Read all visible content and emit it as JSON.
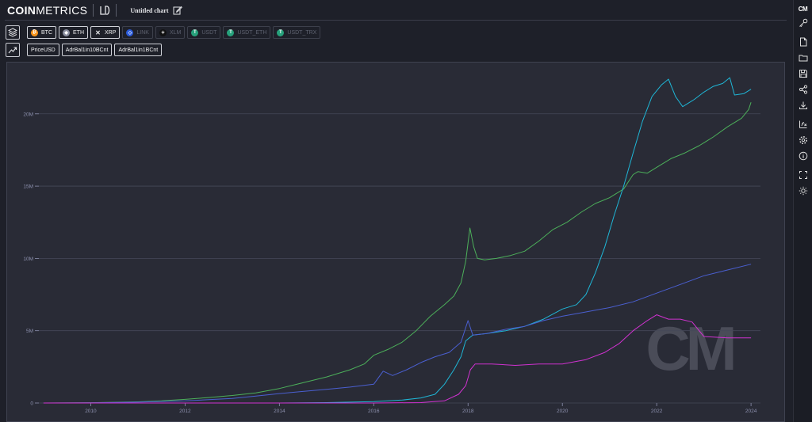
{
  "app": {
    "logo_bold": "COIN",
    "logo_rest": "METRICS",
    "chart_title": "Untitled chart"
  },
  "assets": [
    {
      "label": "BTC",
      "color": "#f7931a",
      "glyph": "₿",
      "active": true
    },
    {
      "label": "ETH",
      "color": "#8a8ea0",
      "glyph": "◆",
      "active": true
    },
    {
      "label": "XRP",
      "color": "#2b2d38",
      "glyph": "✕",
      "active": true
    },
    {
      "label": "LINK",
      "color": "#2a5ada",
      "glyph": "◇",
      "active": false
    },
    {
      "label": "XLM",
      "color": "#111111",
      "glyph": "✧",
      "active": false
    },
    {
      "label": "USDT",
      "color": "#26a17b",
      "glyph": "T",
      "active": false
    },
    {
      "label": "USDT_ETH",
      "color": "#26a17b",
      "glyph": "T",
      "active": false
    },
    {
      "label": "USDT_TRX",
      "color": "#26a17b",
      "glyph": "T",
      "active": false
    }
  ],
  "metrics": [
    {
      "label": "PriceUSD"
    },
    {
      "label": "AdrBal1in10BCnt"
    },
    {
      "label": "AdrBal1in1BCnt"
    }
  ],
  "sidebar": {
    "logo": "CM",
    "icons": [
      "key-icon",
      "new-file-icon",
      "folder-icon",
      "save-icon",
      "share-icon",
      "download-icon",
      "formula-icon",
      "settings-icon",
      "info-icon",
      "fullscreen-icon",
      "theme-icon"
    ]
  },
  "colors": {
    "grid": "#454858",
    "tick": "#8e92b0",
    "green": "#4caf5a",
    "cyan": "#1fb6d6",
    "blue": "#4a5fd0",
    "magenta": "#d032d0",
    "watermark": "#4a4c58"
  },
  "chart_data": {
    "type": "line",
    "watermark": "CM",
    "x_ticks": [
      "2010",
      "2012",
      "2014",
      "2016",
      "2018",
      "2020",
      "2022",
      "2024"
    ],
    "y_ticks": [
      "0",
      "5M",
      "10M",
      "15M",
      "20M"
    ],
    "xlim": [
      2008.9,
      2024.2
    ],
    "ylim": [
      0,
      23000000
    ],
    "series": [
      {
        "color_key": "green",
        "points": [
          [
            2009.0,
            0
          ],
          [
            2010.0,
            20000
          ],
          [
            2011.0,
            80000
          ],
          [
            2011.5,
            150000
          ],
          [
            2012.0,
            250000
          ],
          [
            2012.5,
            380000
          ],
          [
            2013.0,
            520000
          ],
          [
            2013.5,
            700000
          ],
          [
            2014.0,
            1000000
          ],
          [
            2014.5,
            1400000
          ],
          [
            2015.0,
            1800000
          ],
          [
            2015.5,
            2300000
          ],
          [
            2015.8,
            2700000
          ],
          [
            2016.0,
            3300000
          ],
          [
            2016.3,
            3700000
          ],
          [
            2016.6,
            4200000
          ],
          [
            2016.9,
            5000000
          ],
          [
            2017.2,
            6000000
          ],
          [
            2017.5,
            6800000
          ],
          [
            2017.7,
            7400000
          ],
          [
            2017.85,
            8300000
          ],
          [
            2017.95,
            9800000
          ],
          [
            2018.04,
            12100000
          ],
          [
            2018.12,
            10800000
          ],
          [
            2018.2,
            10000000
          ],
          [
            2018.35,
            9900000
          ],
          [
            2018.6,
            10000000
          ],
          [
            2018.9,
            10200000
          ],
          [
            2019.2,
            10500000
          ],
          [
            2019.5,
            11200000
          ],
          [
            2019.8,
            12000000
          ],
          [
            2020.1,
            12500000
          ],
          [
            2020.4,
            13200000
          ],
          [
            2020.7,
            13800000
          ],
          [
            2021.0,
            14200000
          ],
          [
            2021.3,
            14800000
          ],
          [
            2021.5,
            15800000
          ],
          [
            2021.6,
            16000000
          ],
          [
            2021.8,
            15900000
          ],
          [
            2022.0,
            16300000
          ],
          [
            2022.3,
            16900000
          ],
          [
            2022.6,
            17300000
          ],
          [
            2022.9,
            17800000
          ],
          [
            2023.2,
            18400000
          ],
          [
            2023.5,
            19100000
          ],
          [
            2023.8,
            19700000
          ],
          [
            2023.95,
            20300000
          ],
          [
            2024.0,
            20800000
          ]
        ]
      },
      {
        "color_key": "cyan",
        "points": [
          [
            2009.0,
            0
          ],
          [
            2014.0,
            0
          ],
          [
            2015.0,
            30000
          ],
          [
            2016.0,
            100000
          ],
          [
            2016.6,
            200000
          ],
          [
            2017.0,
            350000
          ],
          [
            2017.3,
            600000
          ],
          [
            2017.5,
            1300000
          ],
          [
            2017.7,
            2300000
          ],
          [
            2017.85,
            3200000
          ],
          [
            2017.95,
            4300000
          ],
          [
            2018.1,
            4700000
          ],
          [
            2018.4,
            4800000
          ],
          [
            2018.8,
            5000000
          ],
          [
            2019.2,
            5300000
          ],
          [
            2019.6,
            5800000
          ],
          [
            2020.0,
            6500000
          ],
          [
            2020.3,
            6800000
          ],
          [
            2020.5,
            7500000
          ],
          [
            2020.7,
            9000000
          ],
          [
            2020.9,
            10800000
          ],
          [
            2021.1,
            13000000
          ],
          [
            2021.3,
            15000000
          ],
          [
            2021.5,
            17300000
          ],
          [
            2021.7,
            19500000
          ],
          [
            2021.9,
            21200000
          ],
          [
            2022.1,
            22000000
          ],
          [
            2022.25,
            22400000
          ],
          [
            2022.4,
            21200000
          ],
          [
            2022.55,
            20500000
          ],
          [
            2022.8,
            21000000
          ],
          [
            2023.0,
            21500000
          ],
          [
            2023.2,
            21900000
          ],
          [
            2023.4,
            22100000
          ],
          [
            2023.55,
            22500000
          ],
          [
            2023.65,
            21300000
          ],
          [
            2023.85,
            21400000
          ],
          [
            2024.0,
            21700000
          ]
        ]
      },
      {
        "color_key": "blue",
        "points": [
          [
            2009.0,
            0
          ],
          [
            2010.0,
            10000
          ],
          [
            2011.0,
            60000
          ],
          [
            2012.0,
            150000
          ],
          [
            2012.5,
            230000
          ],
          [
            2013.0,
            320000
          ],
          [
            2013.5,
            480000
          ],
          [
            2014.0,
            650000
          ],
          [
            2014.5,
            800000
          ],
          [
            2015.0,
            950000
          ],
          [
            2015.5,
            1100000
          ],
          [
            2016.0,
            1300000
          ],
          [
            2016.2,
            2200000
          ],
          [
            2016.4,
            1900000
          ],
          [
            2016.7,
            2300000
          ],
          [
            2017.0,
            2800000
          ],
          [
            2017.3,
            3200000
          ],
          [
            2017.6,
            3500000
          ],
          [
            2017.85,
            4200000
          ],
          [
            2018.0,
            5700000
          ],
          [
            2018.1,
            4700000
          ],
          [
            2018.4,
            4800000
          ],
          [
            2018.8,
            5100000
          ],
          [
            2019.2,
            5300000
          ],
          [
            2019.6,
            5700000
          ],
          [
            2020.0,
            6000000
          ],
          [
            2020.5,
            6300000
          ],
          [
            2021.0,
            6600000
          ],
          [
            2021.5,
            7000000
          ],
          [
            2022.0,
            7600000
          ],
          [
            2022.5,
            8200000
          ],
          [
            2023.0,
            8800000
          ],
          [
            2023.5,
            9200000
          ],
          [
            2024.0,
            9600000
          ]
        ]
      },
      {
        "color_key": "magenta",
        "points": [
          [
            2009.0,
            0
          ],
          [
            2016.0,
            0
          ],
          [
            2017.0,
            30000
          ],
          [
            2017.5,
            150000
          ],
          [
            2017.8,
            600000
          ],
          [
            2017.95,
            1200000
          ],
          [
            2018.05,
            2300000
          ],
          [
            2018.15,
            2700000
          ],
          [
            2018.5,
            2700000
          ],
          [
            2019.0,
            2600000
          ],
          [
            2019.5,
            2700000
          ],
          [
            2020.0,
            2700000
          ],
          [
            2020.5,
            3000000
          ],
          [
            2020.9,
            3500000
          ],
          [
            2021.2,
            4100000
          ],
          [
            2021.5,
            5000000
          ],
          [
            2021.8,
            5700000
          ],
          [
            2022.0,
            6100000
          ],
          [
            2022.25,
            5800000
          ],
          [
            2022.5,
            5800000
          ],
          [
            2022.75,
            5600000
          ],
          [
            2023.0,
            4600000
          ],
          [
            2023.5,
            4500000
          ],
          [
            2024.0,
            4500000
          ]
        ]
      }
    ]
  }
}
